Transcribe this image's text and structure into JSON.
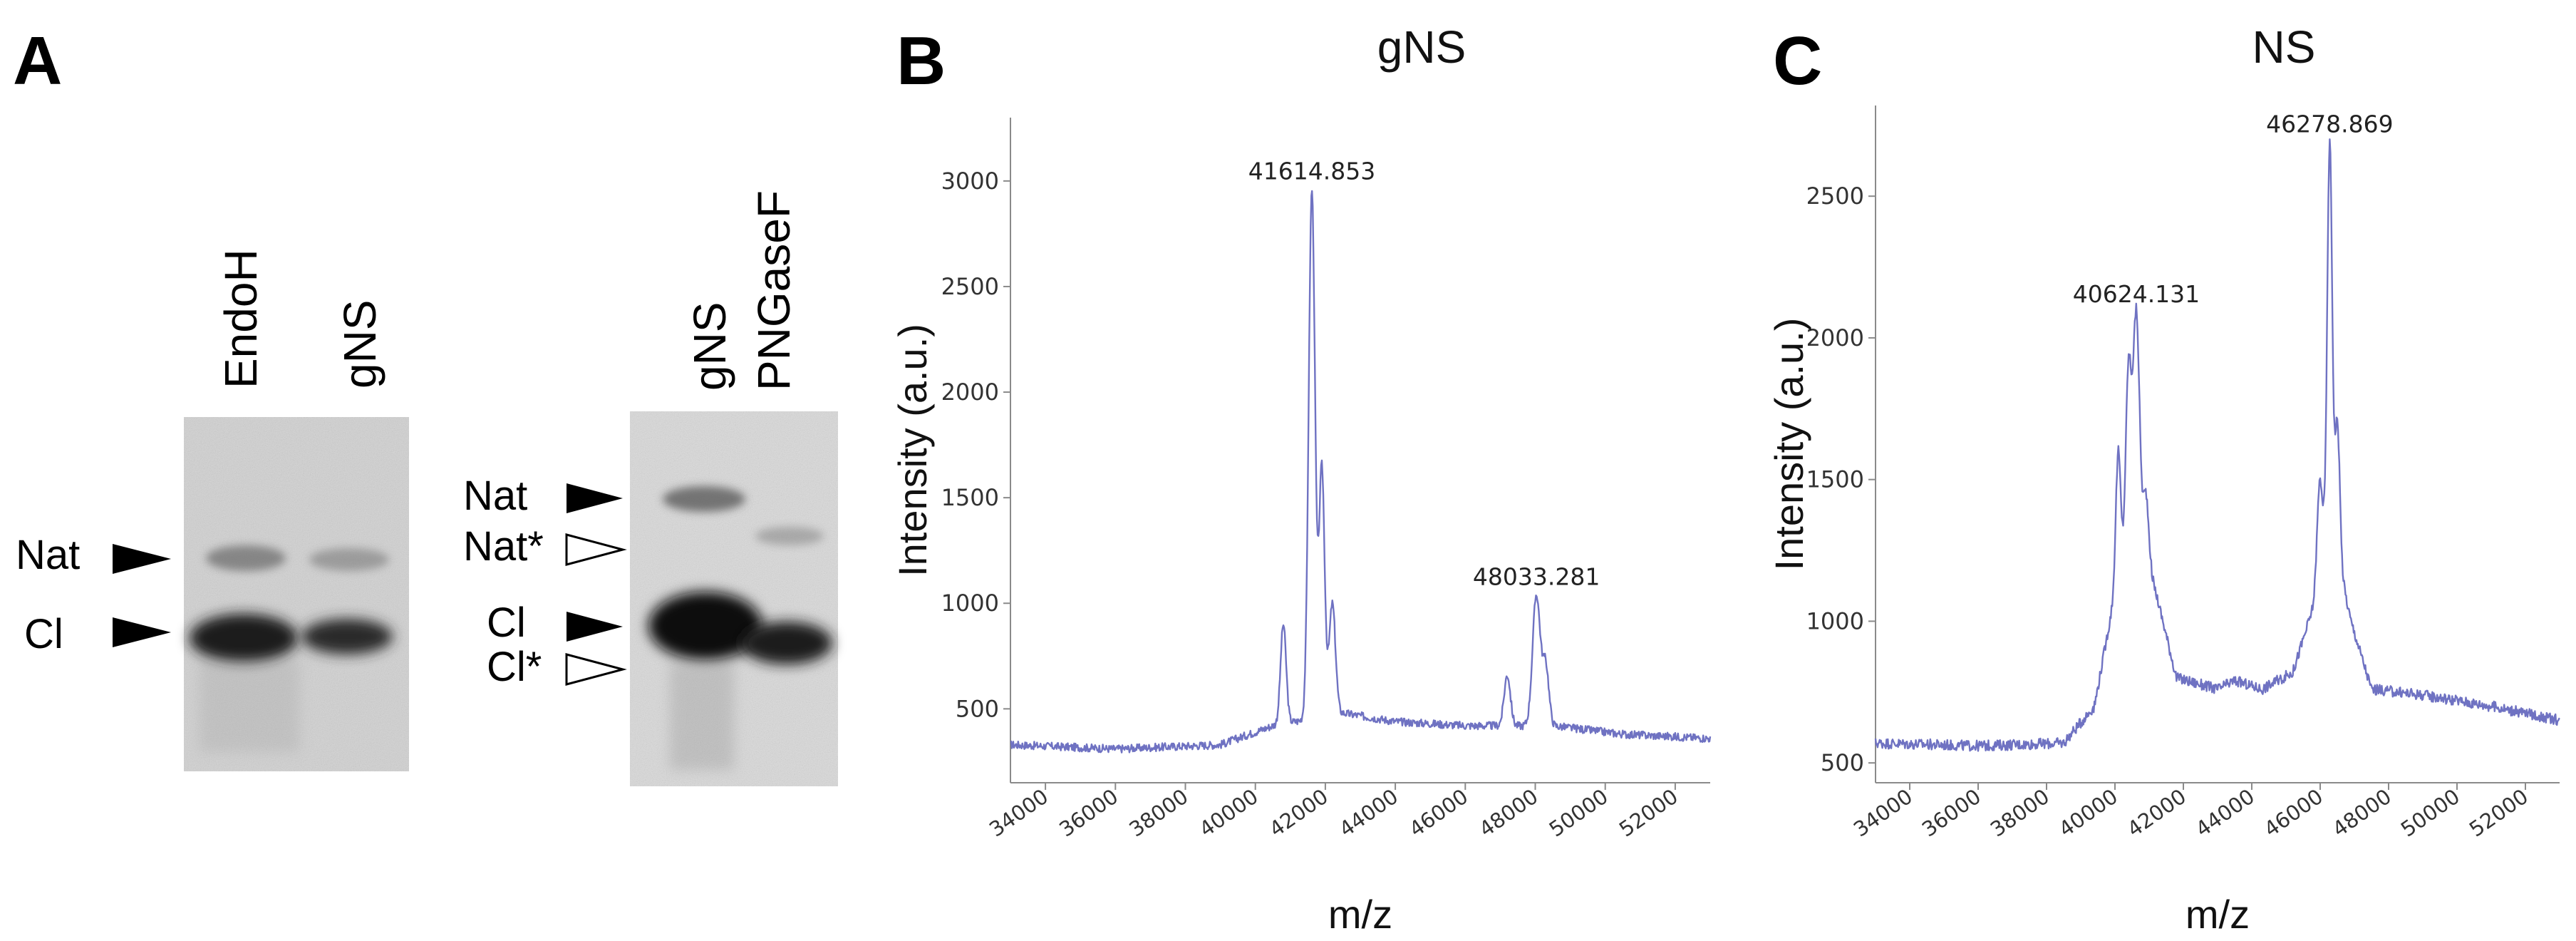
{
  "panels": {
    "A": {
      "letter": "A",
      "gel1": {
        "lanes": [
          "EndoH",
          "gNS"
        ],
        "bands": [
          "Nat",
          "Cl"
        ]
      },
      "gel2": {
        "lanes": [
          "gNS",
          "PNGaseF"
        ],
        "bands": [
          "Nat",
          "Nat*",
          "Cl",
          "Cl*"
        ]
      },
      "arrow_colors": {
        "filled": "#000000",
        "open": "#ffffff"
      }
    },
    "B": {
      "letter": "B"
    },
    "C": {
      "letter": "C"
    }
  },
  "chart_data": [
    {
      "type": "line",
      "title": "gNS",
      "xlabel": "m/z",
      "ylabel": "Intensity (a.u.)",
      "xlim": [
        33000,
        53000
      ],
      "ylim": [
        150,
        3300
      ],
      "xticks": [
        "34000",
        "36000",
        "38000",
        "40000",
        "42000",
        "44000",
        "46000",
        "48000",
        "50000",
        "52000"
      ],
      "yticks": [
        "500",
        "1000",
        "1500",
        "2000",
        "2500",
        "3000"
      ],
      "color": "#6f72c2",
      "baseline": [
        [
          33000,
          330
        ],
        [
          36000,
          310
        ],
        [
          39000,
          330
        ],
        [
          40500,
          420
        ],
        [
          42500,
          480
        ],
        [
          44000,
          440
        ],
        [
          46000,
          420
        ],
        [
          48500,
          420
        ],
        [
          50500,
          380
        ],
        [
          53000,
          360
        ]
      ],
      "peaks": [
        {
          "x": 41614.853,
          "y": 2960,
          "width": 90
        },
        {
          "x": 41900,
          "y": 1640,
          "width": 80
        },
        {
          "x": 40800,
          "y": 900,
          "width": 80
        },
        {
          "x": 42200,
          "y": 1000,
          "width": 90
        },
        {
          "x": 47200,
          "y": 660,
          "width": 90
        },
        {
          "x": 48033.281,
          "y": 1040,
          "width": 110
        },
        {
          "x": 48300,
          "y": 700,
          "width": 90
        }
      ],
      "peak_labels": [
        {
          "text": "41614.853",
          "x": 41614.853,
          "y": 2960
        },
        {
          "text": "48033.281",
          "x": 48033.281,
          "y": 1040
        }
      ]
    },
    {
      "type": "line",
      "title": "NS",
      "xlabel": "m/z",
      "ylabel": "Intensity (a.u.)",
      "xlim": [
        33000,
        53000
      ],
      "ylim": [
        430,
        2820
      ],
      "xticks": [
        "34000",
        "36000",
        "38000",
        "40000",
        "42000",
        "44000",
        "46000",
        "48000",
        "50000",
        "52000"
      ],
      "yticks": [
        "500",
        "1000",
        "1500",
        "2000",
        "2500"
      ],
      "color": "#6f72c2",
      "baseline": [
        [
          33000,
          570
        ],
        [
          36000,
          560
        ],
        [
          38500,
          570
        ],
        [
          39400,
          700
        ],
        [
          40000,
          1100
        ],
        [
          40600,
          1350
        ],
        [
          41200,
          1100
        ],
        [
          41800,
          800
        ],
        [
          43000,
          760
        ],
        [
          43500,
          790
        ],
        [
          44300,
          760
        ],
        [
          45200,
          820
        ],
        [
          45800,
          1050
        ],
        [
          46300,
          1350
        ],
        [
          46900,
          1000
        ],
        [
          47500,
          760
        ],
        [
          49000,
          740
        ],
        [
          51000,
          700
        ],
        [
          53000,
          650
        ]
      ],
      "peaks": [
        {
          "x": 40624.131,
          "y": 2090,
          "width": 90
        },
        {
          "x": 40400,
          "y": 1900,
          "width": 80
        },
        {
          "x": 40100,
          "y": 1600,
          "width": 70
        },
        {
          "x": 40900,
          "y": 1450,
          "width": 80
        },
        {
          "x": 46278.869,
          "y": 2690,
          "width": 70
        },
        {
          "x": 46500,
          "y": 1700,
          "width": 70
        },
        {
          "x": 46000,
          "y": 1500,
          "width": 80
        }
      ],
      "peak_labels": [
        {
          "text": "40624.131",
          "x": 40624.131,
          "y": 2090
        },
        {
          "text": "46278.869",
          "x": 46278.869,
          "y": 2690
        }
      ]
    }
  ]
}
